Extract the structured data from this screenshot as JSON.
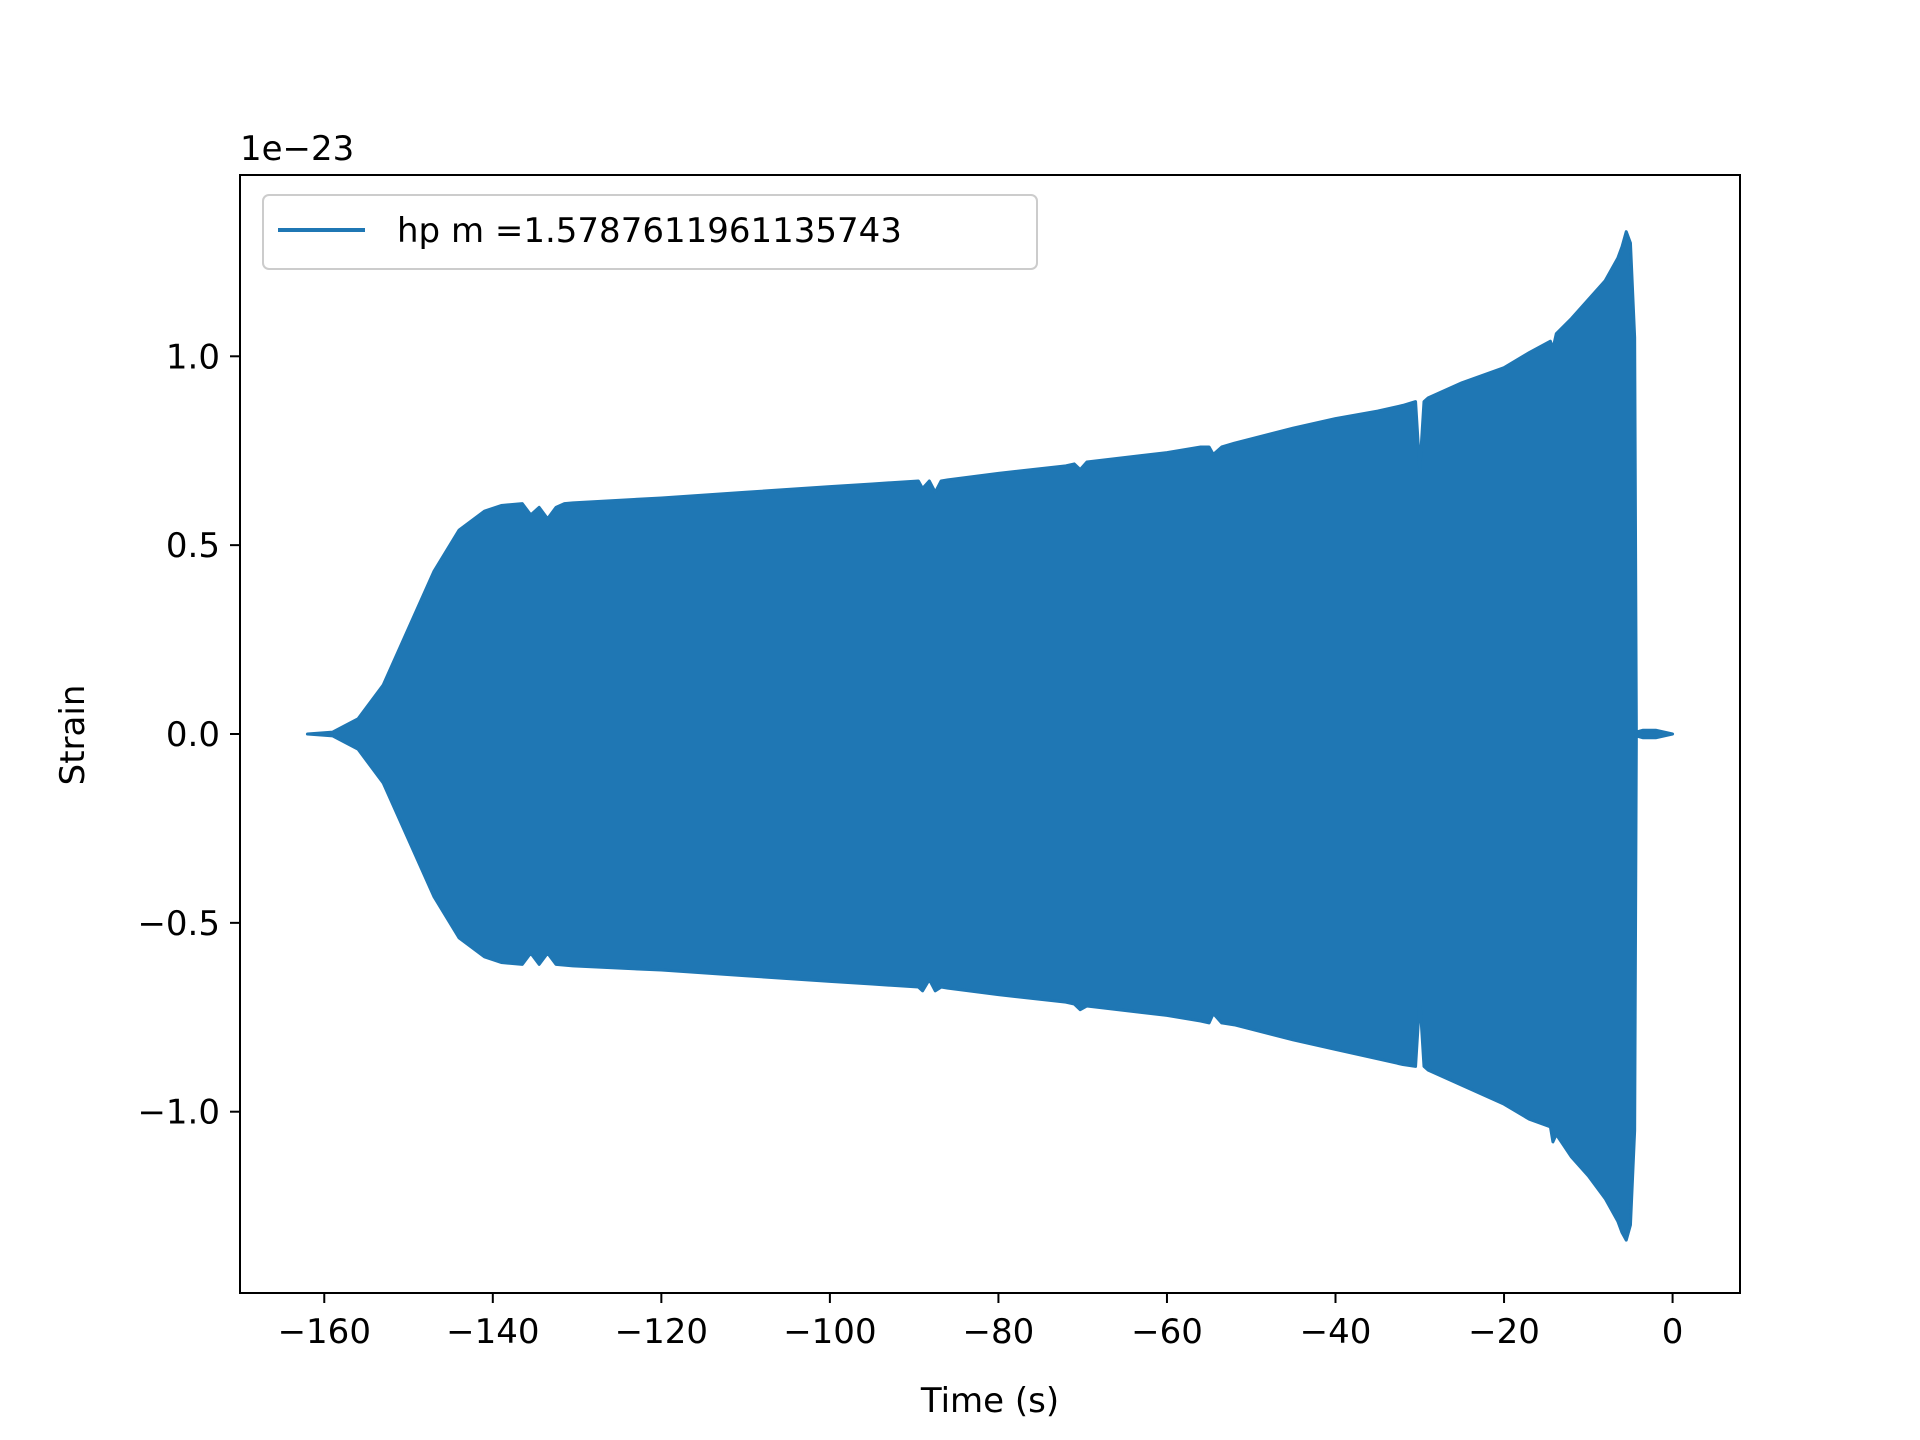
{
  "chart_data": {
    "type": "line",
    "title": "",
    "xlabel": "Time (s)",
    "ylabel": "Strain",
    "offset_text": "1e−23",
    "xlim": [
      -170,
      8
    ],
    "ylim": [
      -1.48,
      1.48
    ],
    "x_ticks": [
      -160,
      -140,
      -120,
      -100,
      -80,
      -60,
      -40,
      -20,
      0
    ],
    "x_tick_labels": [
      "−160",
      "−140",
      "−120",
      "−100",
      "−80",
      "−60",
      "−40",
      "−20",
      "0"
    ],
    "y_ticks": [
      -1.0,
      -0.5,
      0.0,
      0.5,
      1.0
    ],
    "y_tick_labels": [
      "−1.0",
      "−0.5",
      "0.0",
      "0.5",
      "1.0"
    ],
    "grid": false,
    "legend": {
      "position": "top-left"
    },
    "series": [
      {
        "name": "hp m =1.5787611961135743",
        "color": "#1f77b4",
        "style": "dense-oscillation envelope",
        "envelope_upper": {
          "x": [
            -162,
            -159,
            -156,
            -153,
            -150,
            -147,
            -144,
            -141,
            -139,
            -136.5,
            -135.5,
            -134.5,
            -133.5,
            -132.5,
            -131.5,
            -130.5,
            -120,
            -110,
            -100,
            -95,
            -89.5,
            -89,
            -88.2,
            -87.5,
            -86.8,
            -86,
            -80,
            -72,
            -71,
            -70.3,
            -69.5,
            -60,
            -56,
            -55,
            -54.5,
            -53.5,
            -52,
            -45,
            -40,
            -35,
            -32,
            -30.5,
            -30,
            -29.5,
            -29,
            -25,
            -20,
            -17,
            -14.5,
            -14.2,
            -13.8,
            -12,
            -10,
            -8,
            -6.5,
            -6,
            -5.5,
            -5,
            -4.5,
            -4.3,
            -3.5,
            -2,
            0
          ],
          "y": [
            0.0,
            0.005,
            0.04,
            0.13,
            0.28,
            0.43,
            0.54,
            0.59,
            0.605,
            0.61,
            0.58,
            0.6,
            0.57,
            0.6,
            0.61,
            0.612,
            0.625,
            0.64,
            0.655,
            0.662,
            0.67,
            0.65,
            0.67,
            0.64,
            0.67,
            0.673,
            0.69,
            0.71,
            0.715,
            0.7,
            0.72,
            0.745,
            0.76,
            0.76,
            0.74,
            0.76,
            0.77,
            0.81,
            0.835,
            0.855,
            0.87,
            0.88,
            0.7,
            0.88,
            0.89,
            0.93,
            0.97,
            1.01,
            1.04,
            1.02,
            1.06,
            1.1,
            1.15,
            1.2,
            1.26,
            1.29,
            1.33,
            1.3,
            1.05,
            0.005,
            0.01,
            0.01,
            0.0
          ]
        },
        "envelope_lower": {
          "x": [
            -162,
            -159,
            -156,
            -153,
            -150,
            -147,
            -144,
            -141,
            -139,
            -136.5,
            -135.5,
            -134.5,
            -133.5,
            -132.5,
            -131.5,
            -130.5,
            -120,
            -110,
            -100,
            -95,
            -89.5,
            -89,
            -88.2,
            -87.5,
            -86.8,
            -86,
            -80,
            -72,
            -71,
            -70.3,
            -69.5,
            -60,
            -56,
            -55,
            -54.5,
            -53.5,
            -52,
            -45,
            -40,
            -35,
            -32,
            -30.5,
            -30,
            -29.5,
            -29,
            -25,
            -20,
            -17,
            -14.5,
            -14.2,
            -13.8,
            -12,
            -10,
            -8,
            -6.5,
            -6,
            -5.5,
            -5,
            -4.5,
            -4.3,
            -3.5,
            -2,
            0
          ],
          "y": [
            0.0,
            -0.005,
            -0.04,
            -0.13,
            -0.28,
            -0.43,
            -0.54,
            -0.59,
            -0.605,
            -0.61,
            -0.58,
            -0.61,
            -0.58,
            -0.61,
            -0.612,
            -0.614,
            -0.625,
            -0.64,
            -0.655,
            -0.662,
            -0.67,
            -0.68,
            -0.65,
            -0.68,
            -0.67,
            -0.673,
            -0.69,
            -0.71,
            -0.715,
            -0.73,
            -0.72,
            -0.745,
            -0.76,
            -0.765,
            -0.74,
            -0.765,
            -0.77,
            -0.81,
            -0.835,
            -0.86,
            -0.875,
            -0.88,
            -0.7,
            -0.88,
            -0.89,
            -0.93,
            -0.98,
            -1.02,
            -1.04,
            -1.08,
            -1.06,
            -1.12,
            -1.17,
            -1.23,
            -1.29,
            -1.32,
            -1.34,
            -1.3,
            -1.05,
            -0.005,
            -0.01,
            -0.01,
            0.0
          ]
        }
      }
    ]
  }
}
